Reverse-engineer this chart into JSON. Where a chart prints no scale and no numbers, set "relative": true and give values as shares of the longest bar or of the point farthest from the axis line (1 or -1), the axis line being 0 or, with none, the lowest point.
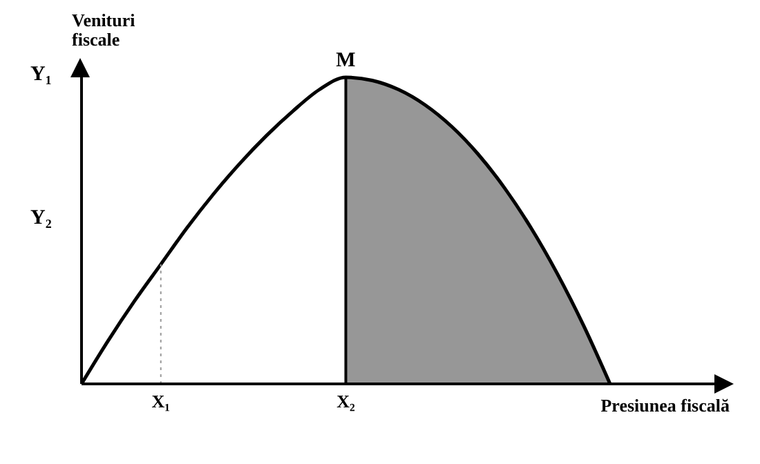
{
  "chart_data": {
    "type": "line",
    "relative": true,
    "xlabel": "Presiunea fiscală",
    "ylabel": "Venituri fiscale",
    "categories": [
      null,
      null,
      null,
      "X₁",
      null,
      null,
      null,
      null,
      null,
      null,
      "X₂",
      null,
      null,
      null,
      null,
      null,
      null,
      null,
      null,
      null,
      null,
      null,
      null,
      null,
      null
    ],
    "series": [
      {
        "color": "#000000",
        "values": [
          0,
          0.14,
          0.27,
          0.39,
          0.51,
          0.62,
          0.72,
          0.81,
          0.89,
          0.96,
          1,
          0.99,
          0.96,
          0.91,
          0.84,
          0.75,
          0.64,
          0.51,
          0.36,
          0.19,
          0,
          null,
          null,
          null,
          null
        ]
      },
      {
        "type": "area",
        "color": "#8c8c8c",
        "values": [
          null,
          null,
          null,
          null,
          null,
          null,
          null,
          null,
          null,
          null,
          1,
          0.99,
          0.96,
          0.91,
          0.84,
          0.75,
          0.64,
          0.51,
          0.36,
          0.19,
          0,
          null,
          null,
          null,
          null
        ]
      }
    ],
    "ref_lines": [
      {
        "axis": "x",
        "value": "X₁",
        "line_style": "dotted",
        "color": "#999999"
      },
      {
        "axis": "x",
        "value": "X₂",
        "line_style": "solid",
        "color": "#000000"
      }
    ],
    "annotations": [
      {
        "text": "M",
        "x": "X₂",
        "y": 1
      },
      "Y₁",
      "Y₂"
    ]
  }
}
